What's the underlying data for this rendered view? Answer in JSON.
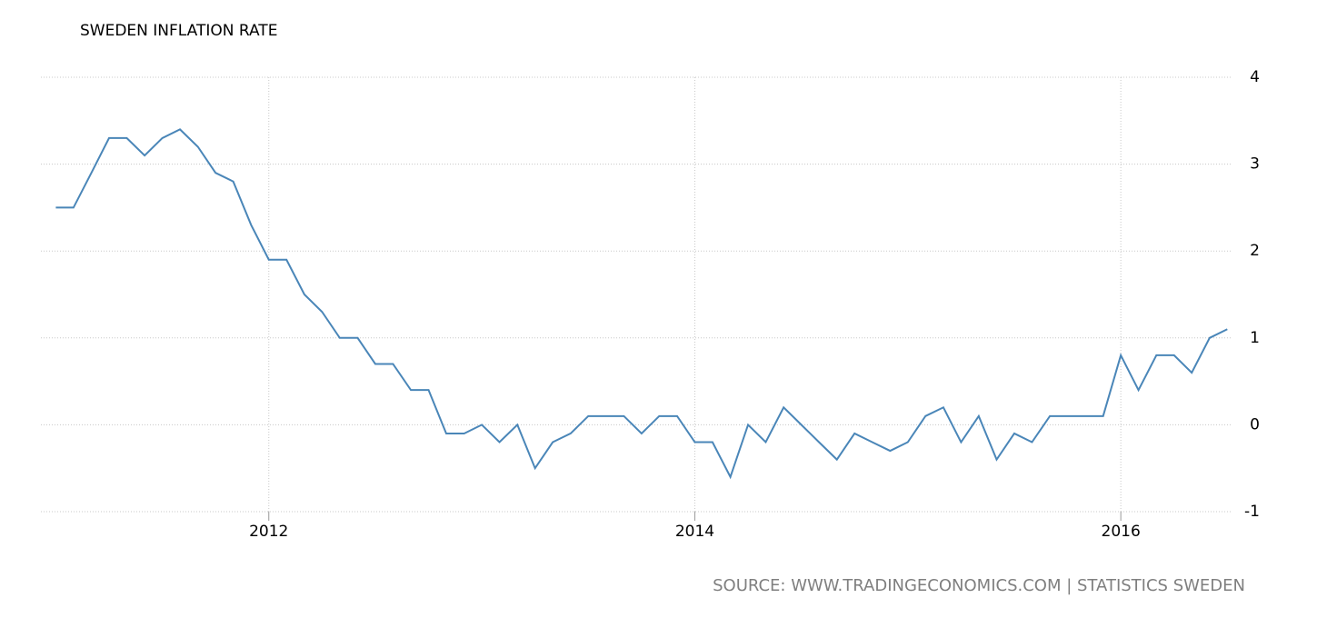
{
  "chart_data": {
    "type": "line",
    "title": "SWEDEN INFLATION RATE",
    "source": "SOURCE: WWW.TRADINGECONOMICS.COM | STATISTICS SWEDEN",
    "x": [
      2011.0,
      2011.083,
      2011.167,
      2011.25,
      2011.333,
      2011.417,
      2011.5,
      2011.583,
      2011.667,
      2011.75,
      2011.833,
      2011.917,
      2012.0,
      2012.083,
      2012.167,
      2012.25,
      2012.333,
      2012.417,
      2012.5,
      2012.583,
      2012.667,
      2012.75,
      2012.833,
      2012.917,
      2013.0,
      2013.083,
      2013.167,
      2013.25,
      2013.333,
      2013.417,
      2013.5,
      2013.583,
      2013.667,
      2013.75,
      2013.833,
      2013.917,
      2014.0,
      2014.083,
      2014.167,
      2014.25,
      2014.333,
      2014.417,
      2014.5,
      2014.583,
      2014.667,
      2014.75,
      2014.833,
      2014.917,
      2015.0,
      2015.083,
      2015.167,
      2015.25,
      2015.333,
      2015.417,
      2015.5,
      2015.583,
      2015.667,
      2015.75,
      2015.833,
      2015.917,
      2016.0,
      2016.083,
      2016.167,
      2016.25,
      2016.333,
      2016.417,
      2016.5
    ],
    "series": [
      {
        "name": "Sweden Inflation Rate",
        "color": "#4a86b8",
        "values": [
          2.5,
          2.5,
          2.9,
          3.3,
          3.3,
          3.1,
          3.3,
          3.4,
          3.2,
          2.9,
          2.8,
          2.3,
          1.9,
          1.9,
          1.5,
          1.3,
          1.0,
          1.0,
          0.7,
          0.7,
          0.4,
          0.4,
          -0.1,
          -0.1,
          0.0,
          -0.2,
          0.0,
          -0.5,
          -0.2,
          -0.1,
          0.1,
          0.1,
          0.1,
          -0.1,
          0.1,
          0.1,
          -0.2,
          -0.2,
          -0.6,
          0.0,
          -0.2,
          0.2,
          0.0,
          -0.2,
          -0.4,
          -0.1,
          -0.2,
          -0.3,
          -0.2,
          0.1,
          0.2,
          -0.2,
          0.1,
          -0.4,
          -0.1,
          -0.2,
          0.1,
          0.1,
          0.1,
          0.1,
          0.8,
          0.4,
          0.8,
          0.8,
          0.6,
          1.0,
          1.1
        ]
      }
    ],
    "xlim": [
      2010.93,
      2016.52
    ],
    "xticks": [
      2012,
      2014,
      2016
    ],
    "ylim": [
      -1,
      4
    ],
    "yticks": [
      -1,
      0,
      1,
      2,
      3,
      4
    ],
    "grid": true
  }
}
